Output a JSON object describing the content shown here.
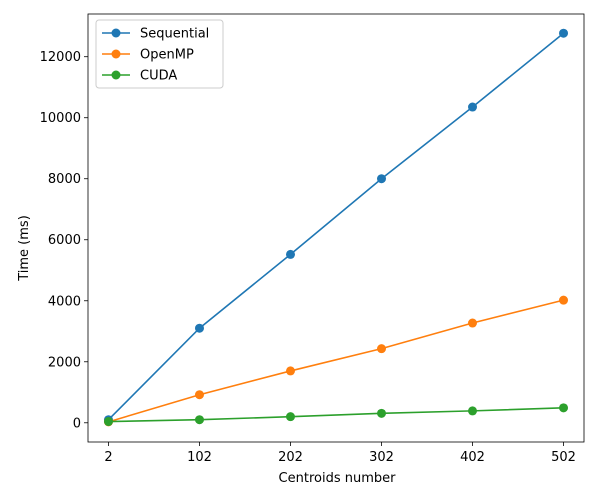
{
  "chart_data": {
    "type": "line",
    "title": "",
    "xlabel": "Centroids number",
    "ylabel": "Time (ms)",
    "x": [
      2,
      102,
      202,
      302,
      402,
      502
    ],
    "xticks": [
      "2",
      "102",
      "202",
      "302",
      "402",
      "502"
    ],
    "yticks": [
      "0",
      "2000",
      "4000",
      "6000",
      "8000",
      "10000",
      "12000"
    ],
    "ytick_values": [
      0,
      2000,
      4000,
      6000,
      8000,
      10000,
      12000
    ],
    "xlim": [
      -20.5,
      524.5
    ],
    "ylim": [
      -630,
      13400
    ],
    "grid": false,
    "legend_position": "top-left",
    "series": [
      {
        "name": "Sequential",
        "color": "#1f77b4",
        "values": [
          100,
          3100,
          5520,
          8000,
          10350,
          12770
        ]
      },
      {
        "name": "OpenMP",
        "color": "#ff7f0e",
        "values": [
          30,
          920,
          1700,
          2430,
          3270,
          4020
        ]
      },
      {
        "name": "CUDA",
        "color": "#2ca02c",
        "values": [
          40,
          100,
          200,
          310,
          390,
          490
        ]
      }
    ]
  }
}
